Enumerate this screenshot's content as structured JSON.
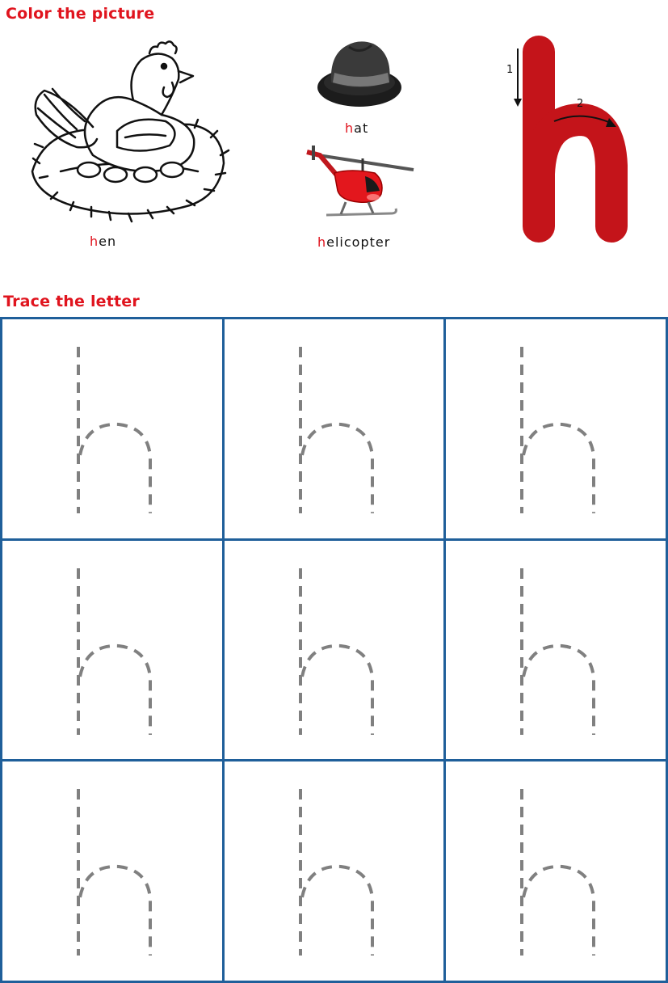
{
  "sections": {
    "color_heading": "Color the picture",
    "trace_heading": "Trace the letter"
  },
  "pictures": [
    {
      "first": "h",
      "rest": "en",
      "icon": "hen-icon"
    },
    {
      "first": "h",
      "rest": "at",
      "icon": "hat-icon"
    },
    {
      "first": "h",
      "rest": "elicopter",
      "icon": "helicopter-icon"
    }
  ],
  "letter_guide": {
    "letter": "h",
    "stroke_1": "1",
    "stroke_2": "2",
    "color": "#c4141a"
  },
  "trace_grid": {
    "rows": 3,
    "columns": 3,
    "letter": "h",
    "border_color": "#1f5f9a",
    "dash_color": "#808080"
  },
  "colors": {
    "heading": "#e0141e",
    "accent_letter": "#e0141e"
  }
}
